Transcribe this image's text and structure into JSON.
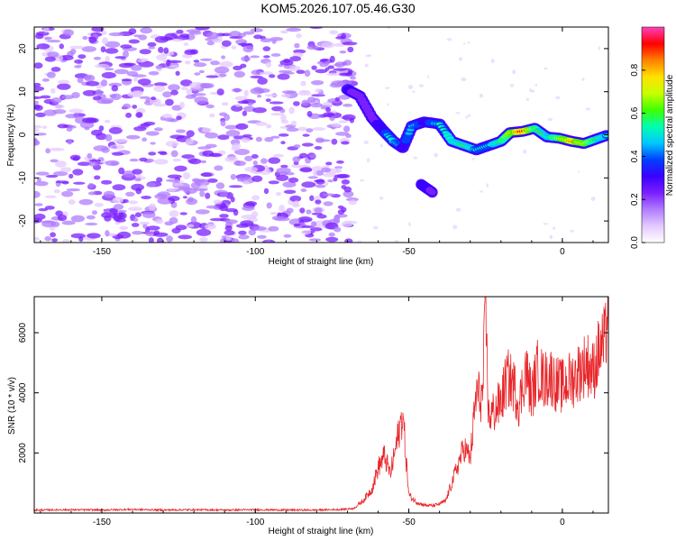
{
  "title": "KOM5.2026.107.05.46.G30",
  "colors": {
    "snr_line": "#e8262a",
    "spectral_palette": [
      "#ffffff",
      "#e4c9ff",
      "#b07cff",
      "#7a1fff",
      "#3a00ff",
      "#0040ff",
      "#00c8ff",
      "#00ffb0",
      "#40ff00",
      "#c8ff00",
      "#ffe000",
      "#ff8000",
      "#ff0000",
      "#ff40c0"
    ]
  },
  "chart_data": [
    {
      "type": "heatmap",
      "name": "spectrogram",
      "xlabel": "Height of straight line (km)",
      "ylabel": "Frequency (Hz)",
      "xlim": [
        -172,
        15
      ],
      "ylim": [
        -25,
        25
      ],
      "xticks": [
        -150,
        -100,
        -50,
        0
      ],
      "xtick_labels": [
        "-150",
        "-100",
        "-50",
        "0"
      ],
      "yticks": [
        -20,
        -10,
        0,
        10,
        20
      ],
      "ytick_labels": [
        "-20",
        "-10",
        "0",
        "10",
        "20"
      ],
      "colorbar": {
        "label": "Normalized spectral amplitude",
        "range": [
          0,
          1
        ],
        "ticks": [
          0,
          0.2,
          0.4,
          0.6,
          0.8
        ],
        "tick_labels": [
          "0.0",
          "0.2",
          "0.4",
          "0.6",
          "0.8"
        ]
      },
      "signal_track": {
        "description": "strong narrow-band signal (height km, frequency Hz, amplitude)",
        "points": [
          [
            -70,
            10.5,
            0.35
          ],
          [
            -66,
            9,
            0.3
          ],
          [
            -62,
            4,
            0.3
          ],
          [
            -59,
            1.5,
            0.4
          ],
          [
            -55,
            -1.5,
            0.55
          ],
          [
            -52,
            -3,
            0.4
          ],
          [
            -49,
            2,
            0.5
          ],
          [
            -45,
            3,
            0.4
          ],
          [
            -40,
            2.5,
            0.5
          ],
          [
            -36,
            -1.5,
            0.55
          ],
          [
            -32,
            -2.5,
            0.6
          ],
          [
            -28,
            -3.5,
            0.5
          ],
          [
            -24,
            -2.5,
            0.5
          ],
          [
            -20,
            -1.5,
            0.6
          ],
          [
            -17,
            0.5,
            0.75
          ],
          [
            -13,
            0.8,
            0.95
          ],
          [
            -9,
            1.5,
            0.65
          ],
          [
            -5,
            -0.5,
            0.55
          ],
          [
            -1,
            -0.8,
            0.7
          ],
          [
            3,
            -1.5,
            0.85
          ],
          [
            7,
            -2,
            0.75
          ],
          [
            11,
            -1,
            0.6
          ],
          [
            15,
            0,
            0.5
          ]
        ],
        "branch": [
          [
            -46,
            -11.5,
            0.35
          ],
          [
            -44,
            -12.5,
            0.35
          ],
          [
            -42,
            -13.5,
            0.3
          ]
        ]
      }
    },
    {
      "type": "line",
      "name": "snr",
      "xlabel": "Height of straight line (km)",
      "ylabel": "SNR (10 * v/v)",
      "xlim": [
        -172,
        15
      ],
      "ylim": [
        0,
        7200
      ],
      "xticks": [
        -150,
        -100,
        -50,
        0
      ],
      "xtick_labels": [
        "-150",
        "-100",
        "-50",
        "0"
      ],
      "yticks": [
        2000,
        4000,
        6000
      ],
      "ytick_labels": [
        "2000",
        "4000",
        "6000"
      ],
      "series": [
        {
          "name": "SNR",
          "x": [
            -172,
            -160,
            -150,
            -140,
            -130,
            -120,
            -110,
            -100,
            -90,
            -80,
            -72,
            -68,
            -65,
            -62,
            -60,
            -58,
            -56,
            -54,
            -52,
            -50,
            -48,
            -46,
            -44,
            -42,
            -40,
            -38,
            -36,
            -34,
            -32,
            -30,
            -28,
            -26,
            -25,
            -24,
            -22,
            -20,
            -18,
            -16,
            -14,
            -12,
            -10,
            -8,
            -6,
            -4,
            -2,
            0,
            2,
            4,
            6,
            8,
            10,
            12,
            14,
            15
          ],
          "y": [
            100,
            110,
            100,
            120,
            100,
            110,
            100,
            110,
            100,
            100,
            120,
            150,
            400,
            800,
            1500,
            1900,
            1300,
            2300,
            3300,
            600,
            400,
            300,
            250,
            250,
            300,
            400,
            1000,
            1600,
            2200,
            1800,
            4000,
            3800,
            6800,
            3200,
            3400,
            3700,
            4500,
            4300,
            3600,
            4800,
            3900,
            4800,
            4400,
            4600,
            4300,
            4200,
            4400,
            4500,
            4800,
            5000,
            4700,
            5400,
            5700,
            7200
          ]
        }
      ]
    }
  ]
}
